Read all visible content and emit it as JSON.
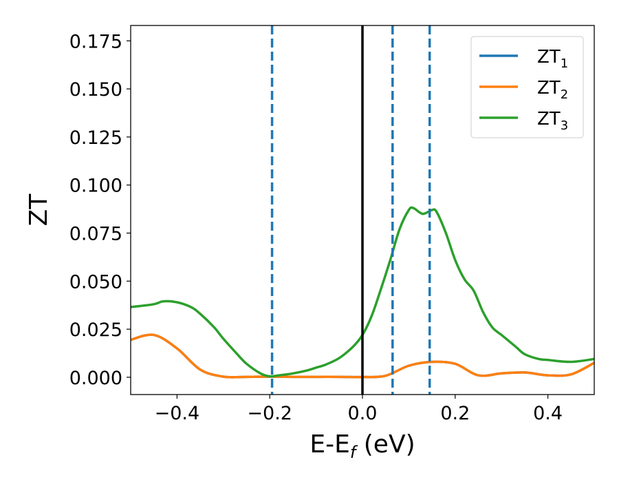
{
  "chart_data": {
    "type": "line",
    "xlabel_main": "E-E",
    "xlabel_sub": "f",
    "xlabel_rest": " (eV)",
    "ylabel": "ZT",
    "xlim": [
      -0.5,
      0.5
    ],
    "ylim": [
      -0.009,
      0.183
    ],
    "x_ticks": [
      -0.4,
      -0.2,
      0.0,
      0.2,
      0.4
    ],
    "x_tick_labels": [
      "−0.4",
      "−0.2",
      "0.0",
      "0.2",
      "0.4"
    ],
    "y_ticks": [
      0.0,
      0.025,
      0.05,
      0.075,
      0.1,
      0.125,
      0.15,
      0.175
    ],
    "y_tick_labels": [
      "0.000",
      "0.025",
      "0.050",
      "0.075",
      "0.100",
      "0.125",
      "0.150",
      "0.175"
    ],
    "grid": false,
    "legend_position": "top-right",
    "series": [
      {
        "name": "ZT",
        "name_sub": "1",
        "color": "#1f77b4",
        "x": [
          -0.5,
          -0.45,
          -0.4,
          -0.35,
          -0.3,
          -0.25,
          -0.2,
          -0.15,
          -0.1,
          -0.05,
          0.0,
          0.05,
          0.1,
          0.15,
          0.2,
          0.25,
          0.3,
          0.35,
          0.4,
          0.45,
          0.5
        ],
        "y": [
          0.0195,
          0.022,
          0.015,
          0.004,
          0.0003,
          0.0002,
          0.0003,
          0.0002,
          0.0002,
          0.0002,
          0.0001,
          0.0008,
          0.006,
          0.008,
          0.007,
          0.001,
          0.002,
          0.0025,
          0.001,
          0.0015,
          0.0075
        ]
      },
      {
        "name": "ZT",
        "name_sub": "2",
        "color": "#ff7f0e",
        "x": [
          -0.5,
          -0.45,
          -0.4,
          -0.35,
          -0.3,
          -0.25,
          -0.2,
          -0.15,
          -0.1,
          -0.05,
          0.0,
          0.05,
          0.1,
          0.15,
          0.2,
          0.25,
          0.3,
          0.35,
          0.4,
          0.45,
          0.5
        ],
        "y": [
          0.0195,
          0.022,
          0.015,
          0.004,
          0.0003,
          0.0002,
          0.0003,
          0.0002,
          0.0002,
          0.0002,
          0.0001,
          0.0008,
          0.006,
          0.008,
          0.007,
          0.001,
          0.002,
          0.0025,
          0.001,
          0.0015,
          0.0075
        ]
      },
      {
        "name": "ZT",
        "name_sub": "3",
        "color": "#2ca02c",
        "x": [
          -0.5,
          -0.45,
          -0.43,
          -0.4,
          -0.37,
          -0.35,
          -0.32,
          -0.3,
          -0.27,
          -0.25,
          -0.22,
          -0.2,
          -0.18,
          -0.15,
          -0.12,
          -0.1,
          -0.08,
          -0.05,
          -0.02,
          0.0,
          0.02,
          0.04,
          0.06,
          0.08,
          0.1,
          0.11,
          0.13,
          0.15,
          0.16,
          0.18,
          0.2,
          0.22,
          0.24,
          0.26,
          0.28,
          0.3,
          0.33,
          0.35,
          0.38,
          0.4,
          0.45,
          0.5
        ],
        "y": [
          0.0365,
          0.038,
          0.0395,
          0.039,
          0.0365,
          0.033,
          0.026,
          0.02,
          0.012,
          0.007,
          0.002,
          0.0005,
          0.001,
          0.002,
          0.0035,
          0.005,
          0.0065,
          0.01,
          0.016,
          0.022,
          0.032,
          0.046,
          0.061,
          0.077,
          0.087,
          0.088,
          0.085,
          0.087,
          0.086,
          0.075,
          0.061,
          0.051,
          0.045,
          0.034,
          0.026,
          0.022,
          0.016,
          0.012,
          0.0095,
          0.009,
          0.008,
          0.0095
        ]
      }
    ],
    "hlines": [],
    "vlines": [
      {
        "x": 0.0,
        "color": "#000000",
        "style": "solid"
      },
      {
        "x": -0.195,
        "color": "#1f77b4",
        "style": "dashed"
      },
      {
        "x": 0.065,
        "color": "#1f77b4",
        "style": "dashed"
      },
      {
        "x": 0.145,
        "color": "#1f77b4",
        "style": "dashed"
      }
    ]
  }
}
